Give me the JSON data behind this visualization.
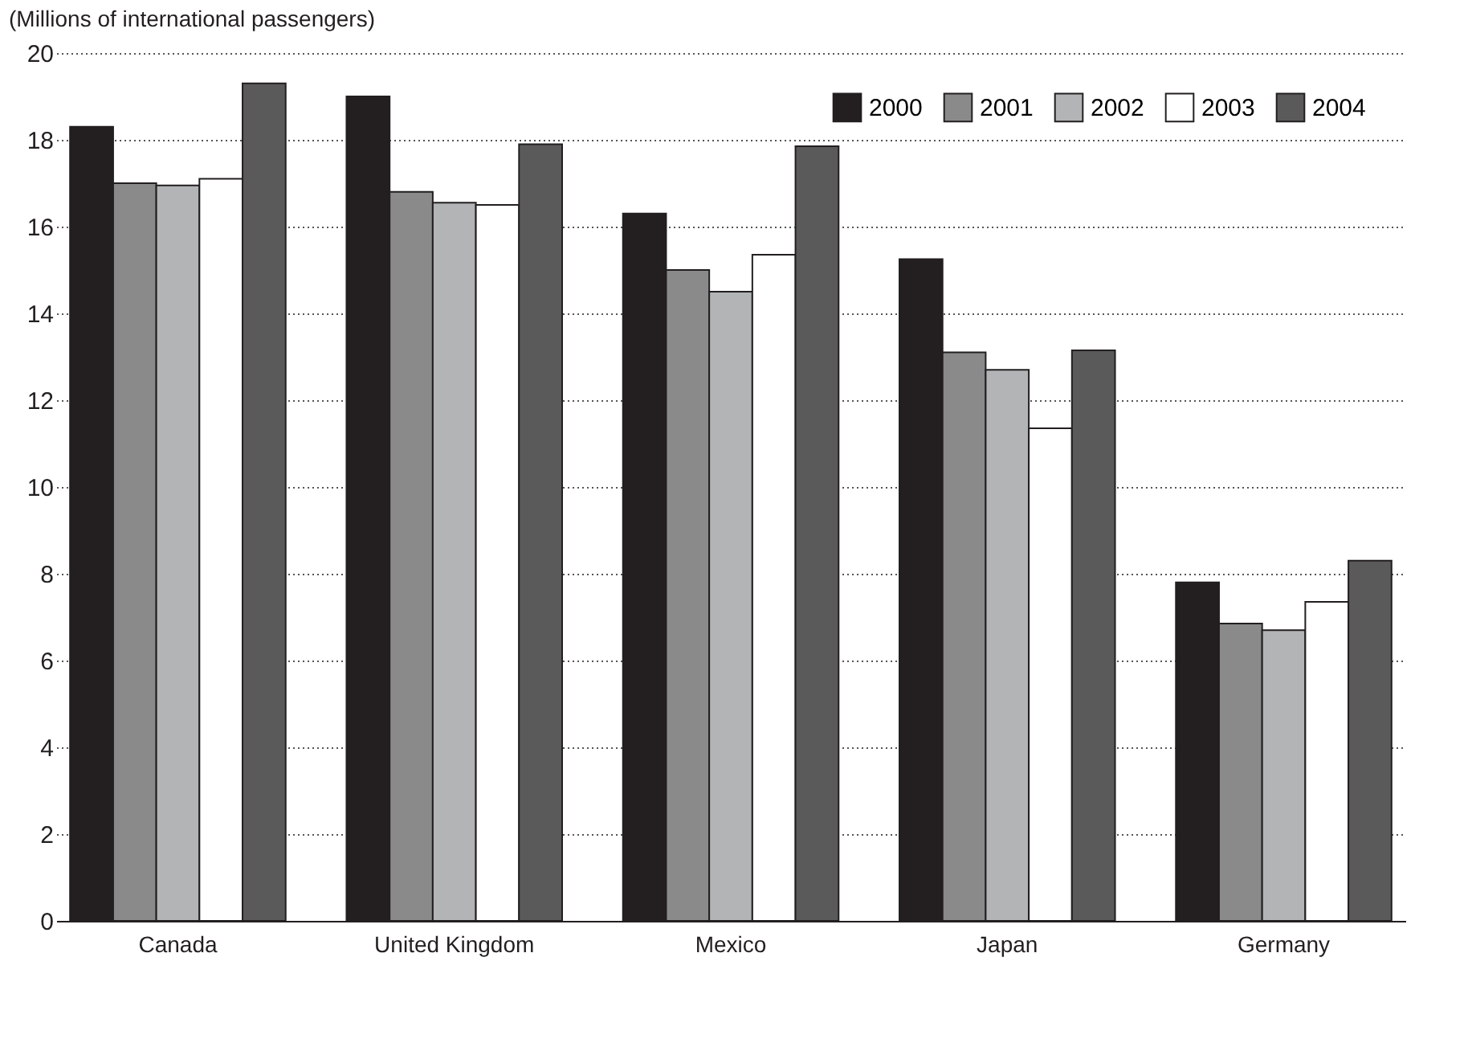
{
  "chart_data": {
    "type": "bar",
    "ylabel": "(Millions of international passengers)",
    "categories": [
      "Canada",
      "United Kingdom",
      "Mexico",
      "Japan",
      "Germany"
    ],
    "series": [
      {
        "name": "2000",
        "color": "#231f20",
        "values": [
          18.3,
          19.0,
          16.3,
          15.25,
          7.8
        ]
      },
      {
        "name": "2001",
        "color": "#8a8a8a",
        "values": [
          17.0,
          16.8,
          15.0,
          13.1,
          6.85
        ]
      },
      {
        "name": "2002",
        "color": "#b2b4b6",
        "values": [
          16.95,
          16.55,
          14.5,
          12.7,
          6.7
        ]
      },
      {
        "name": "2003",
        "color": "#ffffff",
        "values": [
          17.1,
          16.5,
          15.35,
          11.35,
          7.35
        ]
      },
      {
        "name": "2004",
        "color": "#5a5a5a",
        "values": [
          19.3,
          17.9,
          17.85,
          13.15,
          8.3
        ]
      }
    ],
    "ylim": [
      0,
      20
    ],
    "yticks": [
      0,
      2,
      4,
      6,
      8,
      10,
      12,
      14,
      16,
      18,
      20
    ],
    "grid": "y",
    "legend": "top right"
  }
}
